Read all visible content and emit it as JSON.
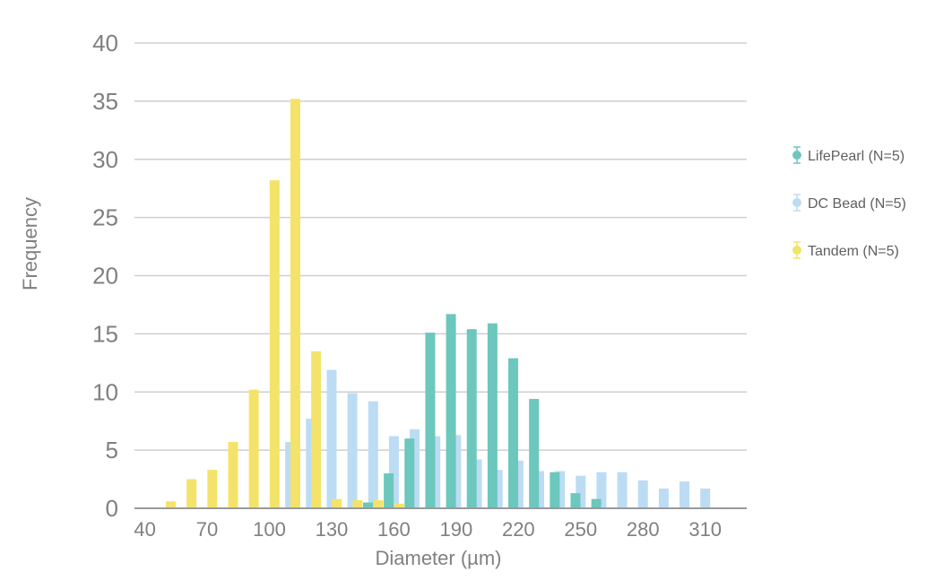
{
  "chart_data": {
    "type": "bar",
    "xlabel": "Diameter (µm)",
    "ylabel": "Frequency",
    "ylim": [
      0,
      40
    ],
    "yticks": [
      0,
      5,
      10,
      15,
      20,
      25,
      30,
      35,
      40
    ],
    "xlim": [
      35,
      330
    ],
    "xticks": [
      40,
      70,
      100,
      130,
      160,
      190,
      220,
      250,
      280,
      310
    ],
    "grid": "horizontal",
    "legend_position": "right",
    "series": [
      {
        "name": "LifePearl (N=5)",
        "color": "#6cc7bd",
        "x": [
          150,
          160,
          170,
          180,
          190,
          200,
          210,
          220,
          230,
          240,
          250,
          260
        ],
        "values": [
          0.5,
          3.0,
          6.0,
          15.1,
          16.7,
          15.4,
          15.9,
          12.9,
          9.4,
          3.1,
          1.3,
          0.8
        ]
      },
      {
        "name": "DC Bead (N=5)",
        "color": "#bcdcf4",
        "x": [
          110,
          120,
          130,
          140,
          150,
          160,
          170,
          180,
          190,
          200,
          210,
          220,
          230,
          240,
          250,
          260,
          270,
          280,
          290,
          300,
          310
        ],
        "values": [
          5.7,
          7.7,
          11.9,
          9.9,
          9.2,
          6.2,
          6.8,
          6.2,
          6.3,
          4.2,
          3.3,
          4.1,
          3.2,
          3.2,
          2.8,
          3.1,
          3.1,
          2.4,
          1.7,
          2.3,
          1.7
        ]
      },
      {
        "name": "Tandem (N=5)",
        "color": "#f4e36a",
        "x": [
          50,
          60,
          70,
          80,
          90,
          100,
          110,
          120,
          130,
          140,
          150,
          160
        ],
        "values": [
          0.6,
          2.5,
          3.3,
          5.7,
          10.2,
          28.2,
          35.2,
          13.5,
          0.8,
          0.7,
          0.7,
          0.4
        ]
      }
    ]
  }
}
